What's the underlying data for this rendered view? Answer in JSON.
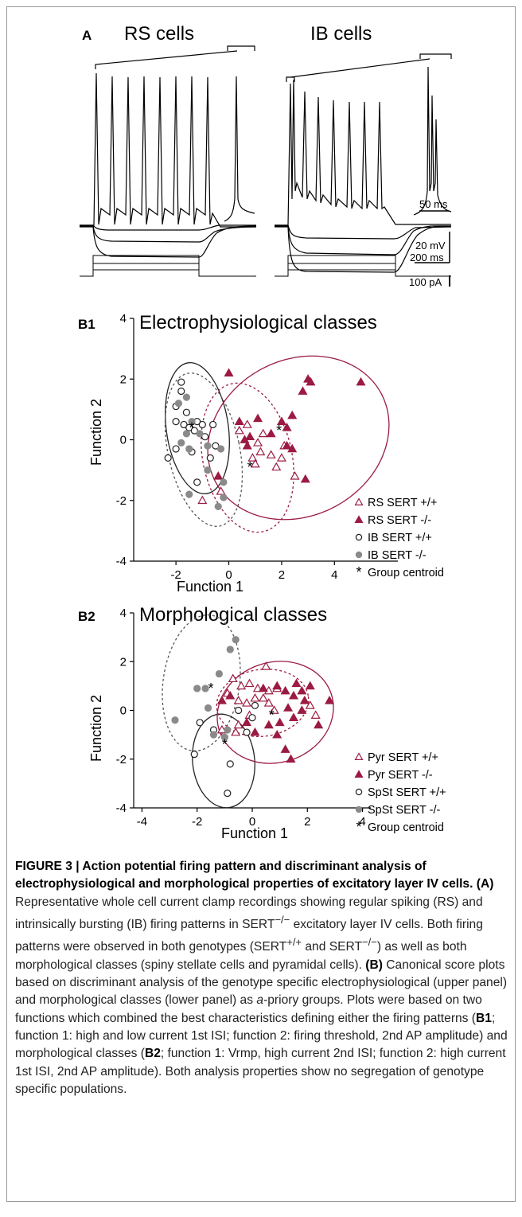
{
  "panel_a": {
    "label": "A",
    "rs_title": "RS cells",
    "ib_title": "IB cells",
    "scale_time_inset": "50 ms",
    "scale_voltage": "20 mV",
    "scale_time": "200 ms",
    "scale_current": "100 pA"
  },
  "chart_data": [
    {
      "type": "scatter",
      "panel": "B1",
      "title": "Electrophysiological classes",
      "xlabel": "Function 1",
      "ylabel": "Function 2",
      "xlim": [
        -4,
        6
      ],
      "ylim": [
        -4,
        4
      ],
      "xticks": [
        -2,
        0,
        2,
        4
      ],
      "yticks": [
        -4,
        -2,
        0,
        2,
        4
      ],
      "legend_position": "right",
      "series": [
        {
          "name": "RS SERT +/+",
          "marker": "open-triangle",
          "color": "#9b1b42",
          "points": [
            [
              0.7,
              0.5
            ],
            [
              0.9,
              -0.6
            ],
            [
              1.0,
              -0.8
            ],
            [
              1.2,
              -0.4
            ],
            [
              1.6,
              -0.5
            ],
            [
              1.8,
              -0.9
            ],
            [
              2.0,
              -0.6
            ],
            [
              2.1,
              -0.2
            ],
            [
              2.5,
              -1.2
            ],
            [
              1.3,
              0.2
            ],
            [
              -1.0,
              -2.0
            ],
            [
              -0.3,
              -1.7
            ],
            [
              0.4,
              0.3
            ],
            [
              1.1,
              -0.1
            ]
          ]
        },
        {
          "name": "RS SERT -/-",
          "marker": "filled-triangle",
          "color": "#9b1b42",
          "points": [
            [
              0.0,
              2.2
            ],
            [
              3.0,
              2.0
            ],
            [
              2.8,
              1.6
            ],
            [
              3.1,
              1.9
            ],
            [
              5.0,
              1.9
            ],
            [
              2.4,
              0.8
            ],
            [
              2.2,
              0.4
            ],
            [
              2.0,
              0.6
            ],
            [
              1.6,
              0.2
            ],
            [
              1.1,
              0.7
            ],
            [
              0.8,
              0.1
            ],
            [
              0.6,
              0.0
            ],
            [
              0.7,
              -0.2
            ],
            [
              2.4,
              -0.3
            ],
            [
              2.9,
              -1.3
            ],
            [
              -0.4,
              -1.2
            ],
            [
              2.2,
              -0.2
            ],
            [
              0.4,
              0.6
            ]
          ]
        },
        {
          "name": "IB SERT +/+",
          "marker": "open-circle",
          "color": "#222222",
          "points": [
            [
              -1.8,
              1.9
            ],
            [
              -1.8,
              1.6
            ],
            [
              -2.0,
              1.1
            ],
            [
              -1.6,
              0.9
            ],
            [
              -2.0,
              0.6
            ],
            [
              -1.7,
              0.5
            ],
            [
              -1.2,
              0.6
            ],
            [
              -1.0,
              0.5
            ],
            [
              -1.5,
              0.4
            ],
            [
              -1.3,
              0.3
            ],
            [
              -0.9,
              0.1
            ],
            [
              -0.6,
              0.5
            ],
            [
              -2.3,
              -0.6
            ],
            [
              -2.0,
              -0.3
            ],
            [
              -1.2,
              -1.4
            ],
            [
              -0.7,
              -0.6
            ],
            [
              -0.5,
              -0.2
            ],
            [
              -1.4,
              -0.4
            ]
          ]
        },
        {
          "name": "IB SERT -/-",
          "marker": "filled-circle",
          "color": "#8a8a8a",
          "points": [
            [
              -1.6,
              1.4
            ],
            [
              -1.9,
              1.2
            ],
            [
              -1.4,
              0.6
            ],
            [
              -1.6,
              0.2
            ],
            [
              -1.8,
              -0.1
            ],
            [
              -1.5,
              -0.3
            ],
            [
              -1.1,
              0.2
            ],
            [
              -0.8,
              -0.2
            ],
            [
              -0.3,
              -0.3
            ],
            [
              -0.2,
              -1.4
            ],
            [
              -1.5,
              -1.8
            ],
            [
              -0.4,
              -2.2
            ],
            [
              -0.2,
              -1.9
            ],
            [
              -0.8,
              -1.0
            ]
          ]
        },
        {
          "name": "Group centroid",
          "marker": "star",
          "color": "#000000",
          "points": [
            [
              -1.4,
              0.4
            ],
            [
              0.8,
              -0.9
            ],
            [
              1.9,
              0.3
            ]
          ]
        }
      ]
    },
    {
      "type": "scatter",
      "panel": "B2",
      "title": "Morphological classes",
      "xlabel": "Function 1",
      "ylabel": "Function 2",
      "xlim": [
        -4,
        4
      ],
      "ylim": [
        -4,
        4
      ],
      "xticks": [
        -4,
        -2,
        0,
        2,
        4
      ],
      "yticks": [
        -4,
        -2,
        0,
        2,
        4
      ],
      "legend_position": "right",
      "series": [
        {
          "name": "Pyr SERT +/+",
          "marker": "open-triangle",
          "color": "#9b1b42",
          "points": [
            [
              -0.7,
              1.3
            ],
            [
              -0.4,
              1.0
            ],
            [
              -0.1,
              1.1
            ],
            [
              0.2,
              0.9
            ],
            [
              0.6,
              0.8
            ],
            [
              0.9,
              0.9
            ],
            [
              -0.9,
              0.7
            ],
            [
              -0.5,
              0.4
            ],
            [
              -0.2,
              0.3
            ],
            [
              0.4,
              0.5
            ],
            [
              0.6,
              0.3
            ],
            [
              0.8,
              0.0
            ],
            [
              -0.1,
              -0.2
            ],
            [
              -0.5,
              -0.6
            ],
            [
              -1.1,
              -0.8
            ],
            [
              2.1,
              0.2
            ],
            [
              2.3,
              -0.2
            ],
            [
              0.5,
              1.8
            ],
            [
              0.1,
              0.5
            ],
            [
              -0.6,
              -0.9
            ]
          ]
        },
        {
          "name": "Pyr SERT -/-",
          "marker": "filled-triangle",
          "color": "#9b1b42",
          "points": [
            [
              0.4,
              0.9
            ],
            [
              0.9,
              1.0
            ],
            [
              1.2,
              0.8
            ],
            [
              1.5,
              0.6
            ],
            [
              1.6,
              1.1
            ],
            [
              1.8,
              0.8
            ],
            [
              2.1,
              1.0
            ],
            [
              1.9,
              0.4
            ],
            [
              1.8,
              0.0
            ],
            [
              2.8,
              0.4
            ],
            [
              1.5,
              -0.3
            ],
            [
              1.0,
              -0.5
            ],
            [
              0.6,
              -0.6
            ],
            [
              0.9,
              -1.0
            ],
            [
              1.2,
              -1.6
            ],
            [
              1.4,
              -2.0
            ],
            [
              2.4,
              -0.6
            ],
            [
              -0.8,
              0.6
            ],
            [
              -1.1,
              0.4
            ],
            [
              -0.2,
              -0.5
            ],
            [
              0.1,
              -0.9
            ],
            [
              1.3,
              0.1
            ]
          ]
        },
        {
          "name": "SpSt SERT +/+",
          "marker": "open-circle",
          "color": "#222222",
          "points": [
            [
              -0.9,
              -3.4
            ],
            [
              -0.8,
              -2.2
            ],
            [
              -2.1,
              -1.8
            ],
            [
              -1.9,
              -0.5
            ],
            [
              -1.4,
              -0.8
            ],
            [
              -0.2,
              -0.9
            ],
            [
              0.1,
              0.2
            ],
            [
              0.0,
              -0.3
            ],
            [
              -0.5,
              0.0
            ]
          ]
        },
        {
          "name": "SpSt SERT -/-",
          "marker": "filled-circle",
          "color": "#8a8a8a",
          "points": [
            [
              -0.6,
              2.9
            ],
            [
              -0.8,
              2.5
            ],
            [
              -1.2,
              1.5
            ],
            [
              -2.0,
              0.9
            ],
            [
              -1.7,
              0.9
            ],
            [
              -2.8,
              -0.4
            ],
            [
              -1.4,
              -1.0
            ],
            [
              -0.9,
              -0.8
            ],
            [
              -1.6,
              0.1
            ],
            [
              -1.0,
              -1.1
            ]
          ]
        },
        {
          "name": "Group centroid",
          "marker": "star",
          "color": "#000000",
          "points": [
            [
              -1.5,
              0.9
            ],
            [
              -1.0,
              -1.4
            ],
            [
              0.7,
              -0.2
            ]
          ]
        }
      ]
    }
  ],
  "caption": {
    "title": "FIGURE 3 | Action potential firing pattern and discriminant analysis of electrophysiological and morphological properties of excitatory layer IV cells.",
    "a_label": "(A)",
    "a_text_1": " Representative whole cell current clamp recordings showing regular spiking (RS) and intrinsically bursting (IB) firing patterns in SERT",
    "a_sup_1": "−/−",
    "a_text_2": " excitatory layer IV cells. Both firing patterns were observed in both genotypes (SERT",
    "a_sup_2": "+/+",
    "a_text_3": " and SERT",
    "a_sup_3": "−/−",
    "a_text_4": ") as well as both morphological classes (spiny stellate cells and pyramidal cells).",
    "b_label": "(B)",
    "b_text_1": " Canonical score plots based on discriminant analysis of the genotype specific electrophysiological (upper panel) and morphological classes (lower panel) as ",
    "b_italic": "a",
    "b_text_2": "-priory groups. Plots were based on two functions which combined the best characteristics defining either the firing patterns (",
    "b1_label": "B1",
    "b_text_3": "; function 1: high and low current 1st ISI; function 2: firing threshold, 2nd AP amplitude) and morphological classes (",
    "b2_label": "B2",
    "b_text_4": "; function 1: Vrmp, high current 2nd ISI; function 2: high current 1st ISI, 2nd AP amplitude). Both analysis properties show no segregation of genotype specific populations."
  }
}
